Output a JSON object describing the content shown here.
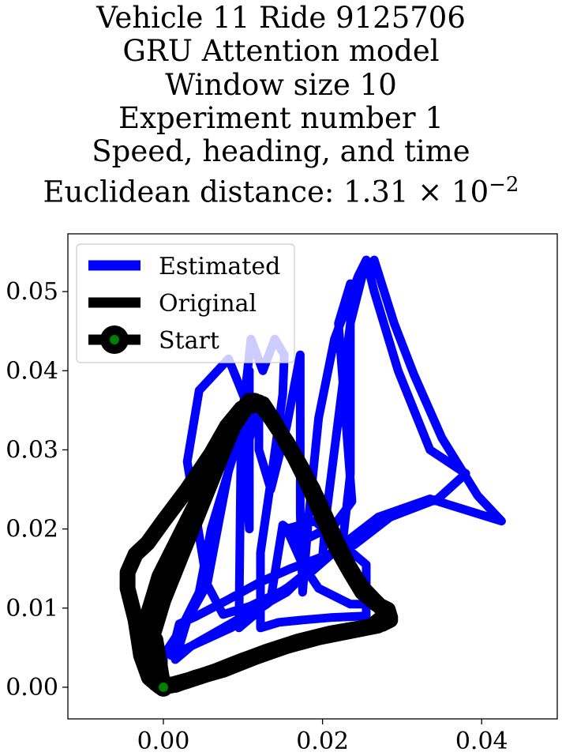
{
  "chart_data": {
    "type": "line",
    "title_lines": [
      "Vehicle 11 Ride 9125706",
      "GRU Attention model",
      "Window size 10",
      "Experiment number 1",
      "Speed, heading, and time"
    ],
    "distance_label": "Euclidean distance: ",
    "distance_mantissa": "1.31",
    "distance_base": "10",
    "distance_exponent": "−2",
    "xlim": [
      -0.012,
      0.0495
    ],
    "ylim": [
      -0.004,
      0.0573
    ],
    "x_ticks": [
      {
        "value": 0.0,
        "label": "0.00"
      },
      {
        "value": 0.02,
        "label": "0.02"
      },
      {
        "value": 0.04,
        "label": "0.04"
      }
    ],
    "y_ticks": [
      {
        "value": 0.0,
        "label": "0.00"
      },
      {
        "value": 0.01,
        "label": "0.01"
      },
      {
        "value": 0.02,
        "label": "0.02"
      },
      {
        "value": 0.03,
        "label": "0.03"
      },
      {
        "value": 0.04,
        "label": "0.04"
      },
      {
        "value": 0.05,
        "label": "0.05"
      }
    ],
    "legend": {
      "placement": "top-left",
      "entries": [
        {
          "label": "Estimated",
          "color": "#0000ff",
          "marker": false
        },
        {
          "label": "Original",
          "color": "#000000",
          "marker": false
        },
        {
          "label": "Start",
          "color": "#000000",
          "marker": true,
          "marker_face": "#008000"
        }
      ]
    },
    "series": [
      {
        "name": "Estimated",
        "color": "#0000ff",
        "points": [
          [
            0.0,
            0.0
          ],
          [
            0.0,
            0.004
          ],
          [
            0.002,
            0.007
          ],
          [
            0.0045,
            0.012
          ],
          [
            0.006,
            0.02
          ],
          [
            0.009,
            0.03
          ],
          [
            0.0108,
            0.04
          ],
          [
            0.0108,
            0.02
          ],
          [
            0.0102,
            0.029
          ],
          [
            0.012,
            0.036
          ],
          [
            0.012,
            0.03
          ],
          [
            0.0135,
            0.025
          ],
          [
            0.0155,
            0.033
          ],
          [
            0.0172,
            0.042
          ],
          [
            0.0172,
            0.022
          ],
          [
            0.0175,
            0.012
          ],
          [
            0.0182,
            0.021
          ],
          [
            0.0195,
            0.034
          ],
          [
            0.0215,
            0.044
          ],
          [
            0.0245,
            0.052
          ],
          [
            0.0255,
            0.054
          ],
          [
            0.0265,
            0.05
          ],
          [
            0.0295,
            0.04
          ],
          [
            0.0335,
            0.03
          ],
          [
            0.038,
            0.027
          ],
          [
            0.0345,
            0.0238
          ],
          [
            0.0285,
            0.0215
          ],
          [
            0.024,
            0.018
          ],
          [
            0.02,
            0.0165
          ],
          [
            0.016,
            0.015
          ],
          [
            0.012,
            0.0132
          ],
          [
            0.008,
            0.011
          ],
          [
            0.0042,
            0.009
          ],
          [
            0.002,
            0.008
          ],
          [
            0.001,
            0.004
          ],
          [
            0.0035,
            0.0052
          ],
          [
            0.0085,
            0.0075
          ],
          [
            0.013,
            0.0105
          ],
          [
            0.018,
            0.0145
          ],
          [
            0.0225,
            0.018
          ],
          [
            0.027,
            0.0215
          ],
          [
            0.0335,
            0.0238
          ],
          [
            0.0425,
            0.021
          ],
          [
            0.0395,
            0.0242
          ],
          [
            0.035,
            0.0315
          ],
          [
            0.0315,
            0.0395
          ],
          [
            0.029,
            0.046
          ],
          [
            0.0265,
            0.054
          ],
          [
            0.025,
            0.052
          ],
          [
            0.0235,
            0.046
          ],
          [
            0.022,
            0.034
          ],
          [
            0.0205,
            0.022
          ],
          [
            0.02,
            0.0165
          ],
          [
            0.0155,
            0.012
          ],
          [
            0.011,
            0.0095
          ],
          [
            0.007,
            0.0072
          ],
          [
            0.0035,
            0.0052
          ],
          [
            0.0015,
            0.0035
          ],
          [
            0.003,
            0.0085
          ],
          [
            0.0055,
            0.013
          ],
          [
            0.007,
            0.021
          ],
          [
            0.0085,
            0.029
          ],
          [
            0.0098,
            0.035
          ],
          [
            0.0095,
            0.0075
          ],
          [
            0.0115,
            0.0092
          ],
          [
            0.0135,
            0.0112
          ],
          [
            0.015,
            0.0205
          ],
          [
            0.0175,
            0.0185
          ],
          [
            0.0215,
            0.0205
          ],
          [
            0.0237,
            0.0235
          ],
          [
            0.022,
            0.046
          ],
          [
            0.0235,
            0.051
          ],
          [
            0.0235,
            0.027
          ],
          [
            0.0225,
            0.018
          ],
          [
            0.0185,
            0.0145
          ],
          [
            0.015,
            0.0122
          ],
          [
            0.0108,
            0.0102
          ],
          [
            0.0075,
            0.0092
          ],
          [
            0.0055,
            0.013
          ],
          [
            0.003,
            0.0285
          ],
          [
            0.0045,
            0.0375
          ],
          [
            0.0082,
            0.0415
          ],
          [
            0.0098,
            0.0375
          ],
          [
            0.0102,
            0.0365
          ],
          [
            0.011,
            0.044
          ],
          [
            0.0125,
            0.04
          ],
          [
            0.014,
            0.044
          ],
          [
            0.0152,
            0.042
          ],
          [
            0.015,
            0.037
          ],
          [
            0.0135,
            0.026
          ],
          [
            0.0122,
            0.017
          ],
          [
            0.0122,
            0.0075
          ],
          [
            0.0145,
            0.0082
          ],
          [
            0.0175,
            0.0085
          ],
          [
            0.021,
            0.0088
          ],
          [
            0.0255,
            0.009
          ],
          [
            0.0255,
            0.0155
          ],
          [
            0.019,
            0.021
          ],
          [
            0.0155,
            0.02
          ],
          [
            0.0175,
            0.0155
          ],
          [
            0.0195,
            0.0125
          ],
          [
            0.0235,
            0.0105
          ],
          [
            0.0265,
            0.0105
          ]
        ]
      },
      {
        "name": "Original",
        "color": "#000000",
        "points": [
          [
            0.0,
            0.0
          ],
          [
            -0.001,
            0.0015
          ],
          [
            -0.0018,
            0.004
          ],
          [
            -0.0012,
            0.007
          ],
          [
            0.0,
            0.011
          ],
          [
            0.002,
            0.016
          ],
          [
            0.004,
            0.021
          ],
          [
            0.006,
            0.026
          ],
          [
            0.008,
            0.031
          ],
          [
            0.0095,
            0.0345
          ],
          [
            0.0108,
            0.0362
          ],
          [
            0.012,
            0.036
          ],
          [
            0.0135,
            0.034
          ],
          [
            0.0155,
            0.031
          ],
          [
            0.0175,
            0.0275
          ],
          [
            0.0195,
            0.0235
          ],
          [
            0.0215,
            0.019
          ],
          [
            0.0232,
            0.0155
          ],
          [
            0.0248,
            0.0128
          ],
          [
            0.0265,
            0.011
          ],
          [
            0.028,
            0.0095
          ],
          [
            0.0285,
            0.0085
          ],
          [
            0.0275,
            0.008
          ],
          [
            0.025,
            0.0075
          ],
          [
            0.021,
            0.0068
          ],
          [
            0.017,
            0.0058
          ],
          [
            0.013,
            0.0045
          ],
          [
            0.009,
            0.003
          ],
          [
            0.006,
            0.0018
          ],
          [
            0.003,
            0.0008
          ],
          [
            0.001,
            0.0002
          ],
          [
            -0.001,
            0.0005
          ],
          [
            -0.002,
            0.002
          ],
          [
            -0.0025,
            0.005
          ],
          [
            -0.002,
            0.009
          ],
          [
            -0.0005,
            0.014
          ],
          [
            0.002,
            0.019
          ],
          [
            0.0045,
            0.024
          ],
          [
            0.0068,
            0.029
          ],
          [
            0.0085,
            0.0325
          ],
          [
            0.0105,
            0.0355
          ],
          [
            0.0125,
            0.0358
          ],
          [
            0.014,
            0.0335
          ],
          [
            0.016,
            0.03
          ],
          [
            0.018,
            0.026
          ],
          [
            0.02,
            0.0215
          ],
          [
            0.0218,
            0.0175
          ],
          [
            0.0235,
            0.0145
          ],
          [
            0.025,
            0.012
          ],
          [
            0.0268,
            0.0105
          ],
          [
            0.0282,
            0.0098
          ],
          [
            0.0285,
            0.0088
          ],
          [
            0.027,
            0.0078
          ],
          [
            0.0235,
            0.0071
          ],
          [
            0.0195,
            0.0063
          ],
          [
            0.0155,
            0.0052
          ],
          [
            0.0115,
            0.0038
          ],
          [
            0.0075,
            0.0022
          ],
          [
            0.004,
            0.0012
          ],
          [
            0.0015,
            0.0003
          ],
          [
            -0.0005,
            0.0001
          ],
          [
            -0.0018,
            0.0012
          ],
          [
            -0.0028,
            0.004
          ],
          [
            -0.0035,
            0.0085
          ],
          [
            -0.0045,
            0.0125
          ],
          [
            -0.0045,
            0.0145
          ],
          [
            -0.0035,
            0.0168
          ],
          [
            -0.002,
            0.0182
          ],
          [
            0.0,
            0.021
          ],
          [
            0.003,
            0.025
          ],
          [
            0.006,
            0.0295
          ],
          [
            0.008,
            0.033
          ],
          [
            0.0098,
            0.0352
          ],
          [
            0.0115,
            0.0362
          ],
          [
            0.013,
            0.035
          ],
          [
            0.0148,
            0.032
          ],
          [
            0.0168,
            0.0285
          ],
          [
            0.0188,
            0.025
          ],
          [
            0.0205,
            0.0205
          ],
          [
            0.0225,
            0.0165
          ],
          [
            0.0242,
            0.0138
          ],
          [
            0.0258,
            0.0115
          ],
          [
            0.0272,
            0.0102
          ],
          [
            0.028,
            0.0092
          ],
          [
            0.026,
            0.0076
          ],
          [
            0.022,
            0.0069
          ],
          [
            0.018,
            0.006
          ],
          [
            0.014,
            0.0048
          ],
          [
            0.01,
            0.0034
          ],
          [
            0.0065,
            0.002
          ],
          [
            0.0035,
            0.001
          ],
          [
            0.001,
            0.0003
          ],
          [
            -0.001,
            0.0006
          ],
          [
            -0.0015,
            0.003
          ],
          [
            -0.001,
            0.006
          ],
          [
            0.0,
            0.0
          ]
        ]
      }
    ],
    "start_point": [
      0.0,
      0.0
    ]
  }
}
